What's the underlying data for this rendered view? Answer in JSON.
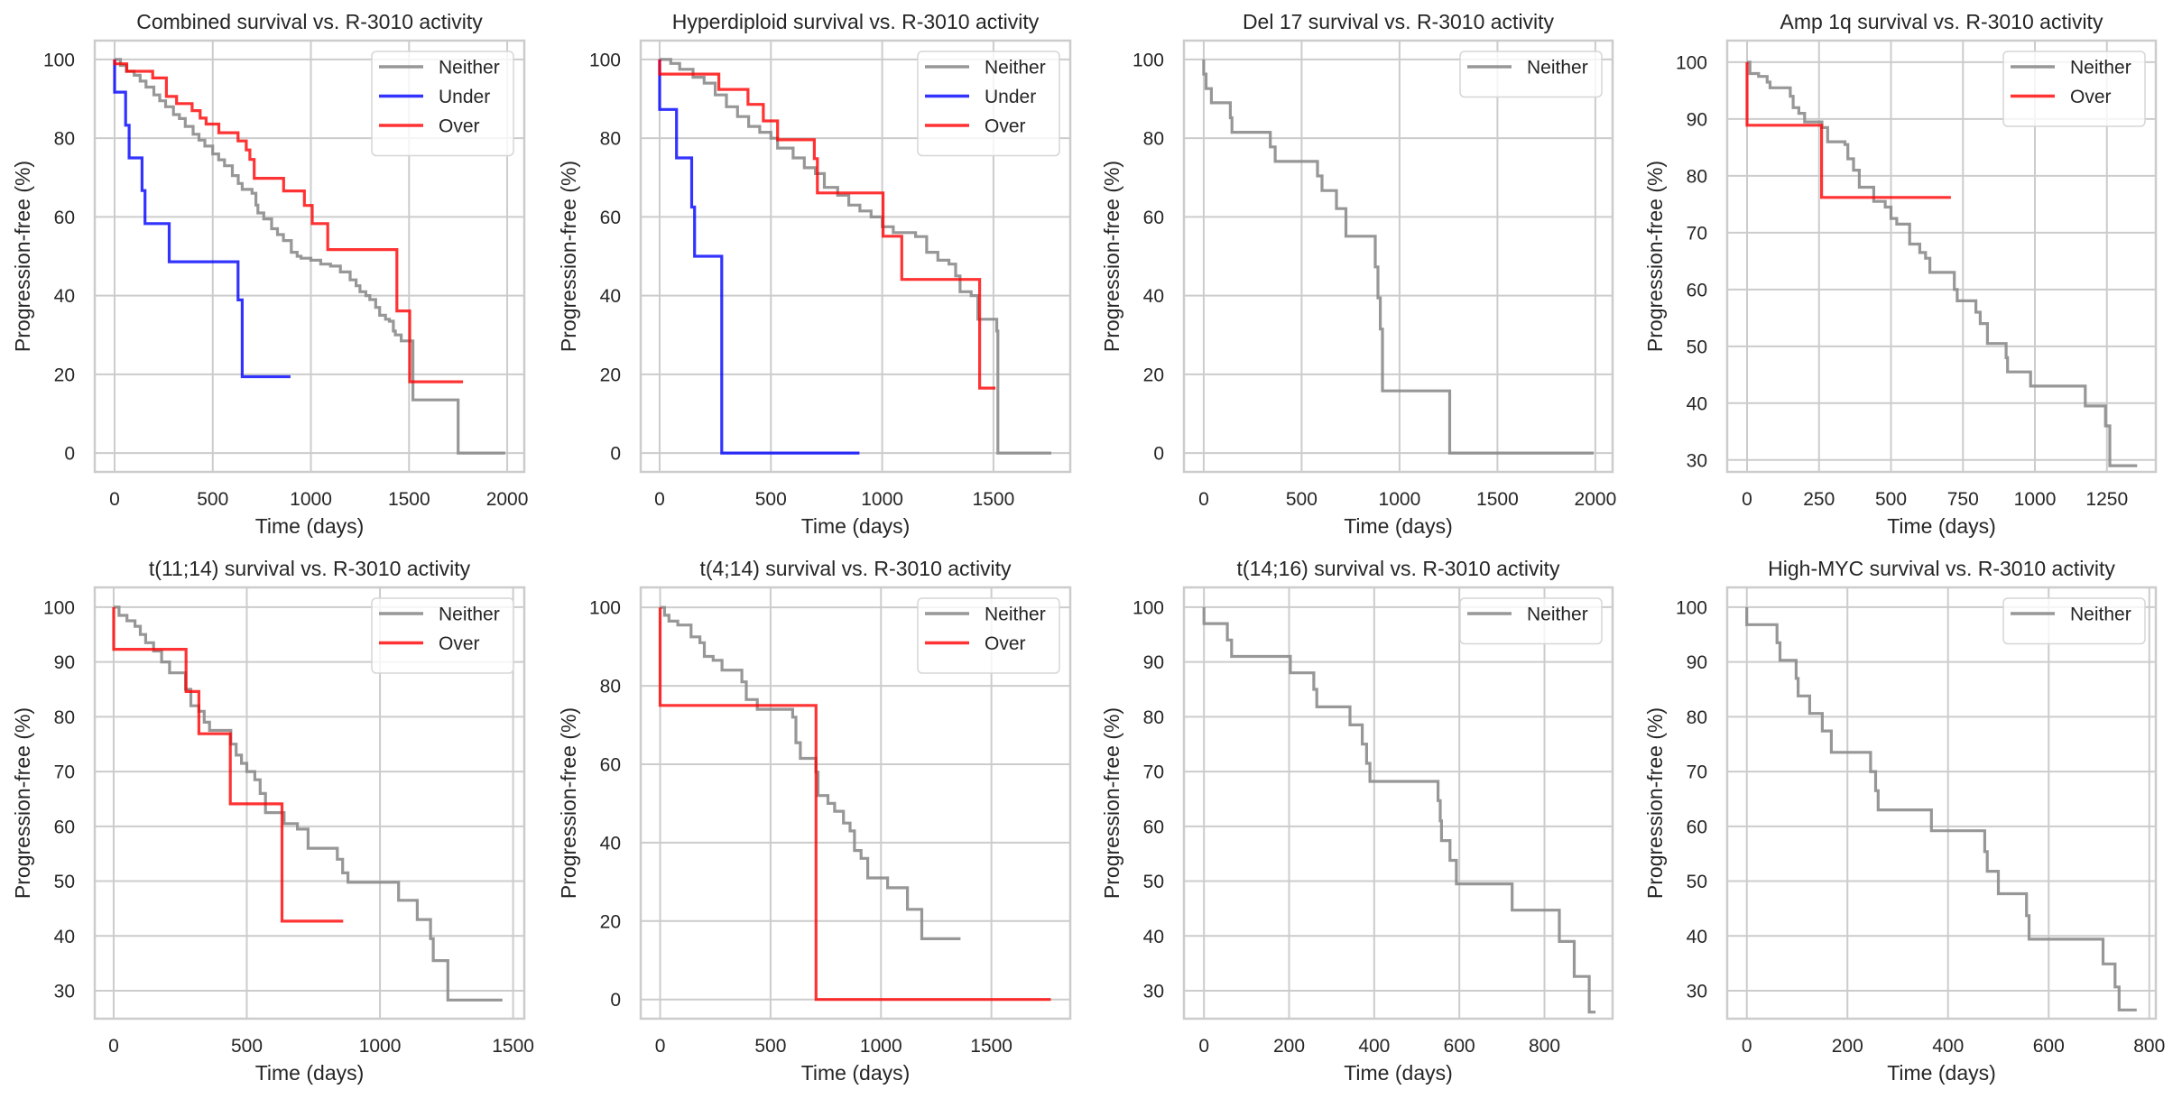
{
  "figure": {
    "panel_count": 8
  },
  "series_styles": {
    "Neither": {
      "color": "#8c8c8c",
      "opacity": 0.9
    },
    "Under": {
      "color": "#0000ff",
      "opacity": 0.8
    },
    "Over": {
      "color": "#ff0000",
      "opacity": 0.8
    }
  },
  "chart_data": [
    {
      "type": "line",
      "step": "post",
      "title": "Combined survival vs. R-3010 activity",
      "xlabel": "Time (days)",
      "ylabel": "Progression-free (%)",
      "xlim": [
        -101,
        2087
      ],
      "ylim": [
        -4.8,
        104.8
      ],
      "xticks": [
        0,
        500,
        1000,
        1500,
        2000
      ],
      "yticks": [
        0,
        20,
        40,
        60,
        80,
        100
      ],
      "grid": true,
      "legend_position": "top-right",
      "series": [
        {
          "name": "Neither",
          "x": [
            0,
            30,
            60,
            100,
            130,
            160,
            200,
            230,
            260,
            300,
            330,
            360,
            400,
            430,
            460,
            500,
            530,
            560,
            600,
            630,
            650,
            700,
            720,
            730,
            760,
            800,
            830,
            860,
            900,
            930,
            950,
            1000,
            1050,
            1100,
            1150,
            1200,
            1230,
            1250,
            1280,
            1300,
            1330,
            1350,
            1380,
            1400,
            1420,
            1430,
            1460,
            1500,
            1520,
            1750,
            1750,
            1990
          ],
          "y": [
            100,
            98.5,
            97,
            96,
            94.5,
            93,
            91,
            89.5,
            88,
            86,
            85,
            83,
            81,
            79.5,
            78,
            76,
            74.5,
            73,
            70.5,
            68.5,
            67,
            66,
            63,
            61,
            59.5,
            57,
            55.5,
            54,
            51,
            50,
            49.5,
            49,
            48,
            47.5,
            46,
            44,
            42.5,
            41,
            40,
            39,
            37,
            35,
            34,
            33.5,
            31,
            30,
            28.5,
            28.5,
            13.5,
            13.5,
            0,
            0
          ]
        },
        {
          "name": "Under",
          "x": [
            0,
            0,
            56,
            74,
            140,
            155,
            278,
            629,
            650,
            896
          ],
          "y": [
            100,
            91.7,
            83.3,
            75,
            66.7,
            58.3,
            48.6,
            38.9,
            19.4,
            19.4
          ]
        },
        {
          "name": "Over",
          "x": [
            0,
            0,
            62,
            194,
            264,
            316,
            395,
            436,
            466,
            531,
            629,
            671,
            689,
            711,
            861,
            967,
            1007,
            1086,
            1438,
            1503,
            1775
          ],
          "y": [
            100,
            98.9,
            97,
            95.3,
            90.6,
            88.8,
            87,
            85.1,
            83.6,
            81.4,
            79.3,
            77,
            74.6,
            69.8,
            66.6,
            62.9,
            58.3,
            51.7,
            36.1,
            18.1,
            18.1
          ]
        }
      ]
    },
    {
      "type": "line",
      "step": "post",
      "title": "Hyperdiploid survival vs. R-3010 activity",
      "xlabel": "Time (days)",
      "ylabel": "Progression-free (%)",
      "xlim": [
        -85,
        1845
      ],
      "ylim": [
        -4.8,
        104.8
      ],
      "xticks": [
        0,
        500,
        1000,
        1500
      ],
      "yticks": [
        0,
        20,
        40,
        60,
        80,
        100
      ],
      "grid": true,
      "legend_position": "top-right",
      "series": [
        {
          "name": "Neither",
          "x": [
            0,
            50,
            90,
            150,
            200,
            250,
            300,
            350,
            400,
            450,
            500,
            530,
            600,
            650,
            700,
            740,
            800,
            850,
            900,
            950,
            1000,
            1050,
            1150,
            1200,
            1250,
            1300,
            1330,
            1350,
            1400,
            1430,
            1500,
            1515,
            1520,
            1760
          ],
          "y": [
            100,
            99,
            97.5,
            95.5,
            94,
            91,
            88,
            85.5,
            83,
            81.5,
            80,
            77.5,
            75,
            72.5,
            71,
            67.5,
            65.5,
            63,
            61.5,
            60,
            57.5,
            56,
            55,
            51,
            49,
            48,
            45,
            41,
            40,
            34,
            34,
            31,
            0,
            0
          ]
        },
        {
          "name": "Under",
          "x": [
            0,
            0,
            76,
            144,
            157,
            279,
            898
          ],
          "y": [
            100,
            87.3,
            75,
            62.5,
            50,
            0,
            0
          ]
        },
        {
          "name": "Over",
          "x": [
            0,
            0,
            266,
            397,
            466,
            530,
            695,
            709,
            1004,
            1088,
            1438,
            1509
          ],
          "y": [
            100,
            96.3,
            92.4,
            88.6,
            84.4,
            79.6,
            74.8,
            66.1,
            55.1,
            44.1,
            16.5,
            16.5
          ]
        }
      ]
    },
    {
      "type": "line",
      "step": "post",
      "title": "Del 17 survival vs. R-3010 activity",
      "xlabel": "Time (days)",
      "ylabel": "Progression-free (%)",
      "xlim": [
        -101,
        2088
      ],
      "ylim": [
        -4.8,
        104.8
      ],
      "xticks": [
        0,
        500,
        1000,
        1500,
        2000
      ],
      "yticks": [
        0,
        20,
        40,
        60,
        80,
        100
      ],
      "grid": true,
      "legend_position": "top-right",
      "series": [
        {
          "name": "Neither",
          "x": [
            0,
            0,
            12,
            39,
            136,
            144,
            340,
            365,
            581,
            604,
            678,
            726,
            876,
            890,
            902,
            913,
            1256,
            1991
          ],
          "y": [
            100,
            96.3,
            92.6,
            89,
            85.2,
            81.5,
            77.8,
            74.1,
            70.4,
            66.7,
            62.1,
            55.1,
            47.3,
            39.4,
            31.5,
            15.8,
            0,
            0
          ]
        }
      ]
    },
    {
      "type": "line",
      "step": "post",
      "title": "Amp 1q survival vs. R-3010 activity",
      "xlabel": "Time (days)",
      "ylabel": "Progression-free (%)",
      "xlim": [
        -69,
        1420
      ],
      "ylim": [
        27.9,
        103.8
      ],
      "xticks": [
        0,
        250,
        500,
        750,
        1000,
        1250
      ],
      "yticks": [
        30,
        40,
        50,
        60,
        70,
        80,
        90,
        100
      ],
      "grid": true,
      "legend_position": "top-right",
      "series": [
        {
          "name": "Neither",
          "x": [
            0,
            10,
            40,
            70,
            80,
            140,
            150,
            160,
            180,
            200,
            260,
            280,
            340,
            350,
            370,
            390,
            440,
            480,
            500,
            520,
            565,
            600,
            620,
            635,
            720,
            730,
            795,
            810,
            835,
            900,
            905,
            985,
            1175,
            1245,
            1260,
            1355
          ],
          "y": [
            100,
            98,
            97.5,
            96.5,
            95.5,
            95.5,
            94,
            92,
            91,
            89.5,
            88.5,
            86,
            85.5,
            83,
            81,
            78,
            75.5,
            74.5,
            72.5,
            71.5,
            68,
            66.5,
            65.5,
            63,
            60,
            58,
            56,
            54,
            50.5,
            48,
            45.5,
            43,
            39.5,
            36,
            29,
            29
          ]
        },
        {
          "name": "Over",
          "x": [
            0,
            0,
            259,
            708
          ],
          "y": [
            100,
            88.9,
            76.2,
            76.2
          ]
        }
      ]
    },
    {
      "type": "line",
      "step": "post",
      "title": "t(11;14) survival vs. R-3010 activity",
      "xlabel": "Time (days)",
      "ylabel": "Progression-free (%)",
      "xlim": [
        -71,
        1542
      ],
      "ylim": [
        24.9,
        103.6
      ],
      "xticks": [
        0,
        500,
        1000,
        1500
      ],
      "yticks": [
        30,
        40,
        50,
        60,
        70,
        80,
        90,
        100
      ],
      "grid": true,
      "legend_position": "top-right",
      "series": [
        {
          "name": "Neither",
          "x": [
            0,
            20,
            50,
            80,
            100,
            120,
            150,
            180,
            210,
            270,
            290,
            320,
            340,
            360,
            440,
            460,
            480,
            500,
            530,
            550,
            570,
            640,
            690,
            730,
            840,
            860,
            880,
            1070,
            1140,
            1190,
            1200,
            1255,
            1460
          ],
          "y": [
            100,
            98.5,
            97.5,
            96.5,
            95,
            93.5,
            92,
            90,
            88,
            85,
            82,
            81,
            79,
            77.5,
            75,
            73,
            71.5,
            70,
            68.5,
            66,
            62.5,
            60.5,
            59.5,
            56,
            54,
            51.5,
            49.8,
            46.5,
            43,
            39.5,
            35.5,
            28.3,
            28.3
          ]
        },
        {
          "name": "Over",
          "x": [
            0,
            0,
            272,
            320,
            438,
            632,
            862
          ],
          "y": [
            100,
            92.3,
            84.6,
            76.9,
            64.1,
            42.7,
            42.7
          ]
        }
      ]
    },
    {
      "type": "line",
      "step": "post",
      "title": "t(4;14) survival vs. R-3010 activity",
      "xlabel": "Time (days)",
      "ylabel": "Progression-free (%)",
      "xlim": [
        -88,
        1857
      ],
      "ylim": [
        -4.9,
        105.1
      ],
      "xticks": [
        0,
        500,
        1000,
        1500
      ],
      "yticks": [
        0,
        20,
        40,
        60,
        80,
        100
      ],
      "grid": true,
      "legend_position": "top-right",
      "series": [
        {
          "name": "Neither",
          "x": [
            0,
            20,
            40,
            80,
            140,
            180,
            200,
            240,
            280,
            370,
            390,
            440,
            600,
            615,
            635,
            705,
            715,
            760,
            790,
            830,
            860,
            880,
            910,
            940,
            1030,
            1120,
            1185,
            1360
          ],
          "y": [
            100,
            98,
            96.5,
            95.5,
            92.5,
            91,
            87.5,
            86.5,
            84,
            81,
            76.5,
            74,
            72,
            65.5,
            61.5,
            58,
            52,
            50,
            48,
            45,
            43,
            38,
            36,
            31,
            28.5,
            23,
            15.5,
            15.5
          ]
        },
        {
          "name": "Over",
          "x": [
            0,
            0,
            706,
            1769
          ],
          "y": [
            100,
            75,
            0,
            0
          ]
        }
      ]
    },
    {
      "type": "line",
      "step": "post",
      "title": "t(14;16) survival vs. R-3010 activity",
      "xlabel": "Time (days)",
      "ylabel": "Progression-free (%)",
      "xlim": [
        -47,
        960
      ],
      "ylim": [
        24.9,
        103.6
      ],
      "xticks": [
        0,
        200,
        400,
        600,
        800
      ],
      "yticks": [
        30,
        40,
        50,
        60,
        70,
        80,
        90,
        100
      ],
      "grid": true,
      "legend_position": "top-right",
      "series": [
        {
          "name": "Neither",
          "x": [
            0,
            0,
            55,
            65,
            203,
            258,
            265,
            343,
            372,
            382,
            390,
            550,
            555,
            558,
            578,
            593,
            724,
            835,
            870,
            905,
            920
          ],
          "y": [
            100,
            97,
            94,
            91,
            88,
            85,
            81.8,
            78.5,
            75,
            71.5,
            68.2,
            64.7,
            61,
            57.4,
            53.8,
            49.5,
            44.7,
            39,
            32.6,
            26.1,
            26.1
          ]
        }
      ]
    },
    {
      "type": "line",
      "step": "post",
      "title": "High-MYC survival vs. R-3010 activity",
      "xlabel": "Time (days)",
      "ylabel": "Progression-free (%)",
      "xlim": [
        -39,
        813
      ],
      "ylim": [
        24.9,
        103.6
      ],
      "xticks": [
        0,
        200,
        400,
        600,
        800
      ],
      "yticks": [
        30,
        40,
        50,
        60,
        70,
        80,
        90,
        100
      ],
      "grid": true,
      "legend_position": "top-right",
      "series": [
        {
          "name": "Neither",
          "x": [
            0,
            0,
            60,
            66,
            98,
            102,
            125,
            150,
            168,
            246,
            256,
            261,
            367,
            473,
            478,
            500,
            556,
            561,
            708,
            732,
            740,
            775
          ],
          "y": [
            100,
            96.8,
            93.5,
            90.3,
            87,
            83.8,
            80.6,
            77.4,
            73.5,
            70,
            66.5,
            63,
            59.2,
            55.4,
            51.8,
            47.7,
            43.7,
            39.4,
            34.9,
            30.7,
            26.5,
            26.5
          ]
        }
      ]
    }
  ]
}
